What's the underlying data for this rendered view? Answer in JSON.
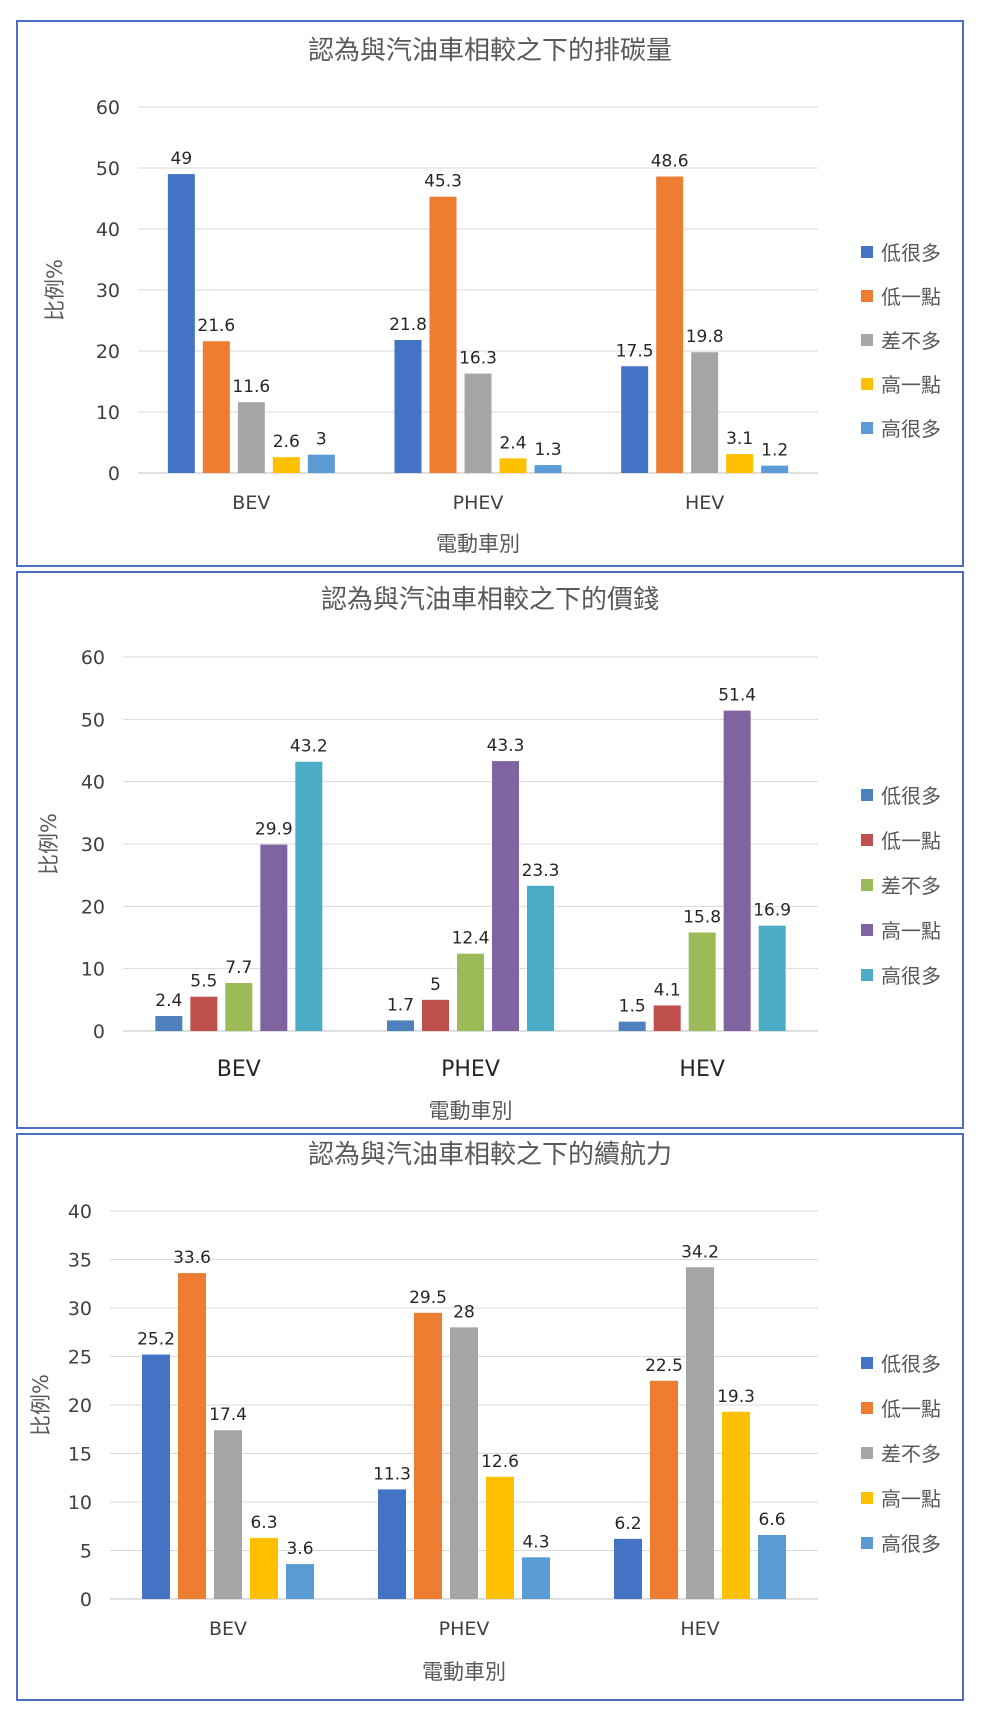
{
  "chart_data": [
    {
      "type": "bar",
      "title": "認為與汽油車相較之下的排碳量",
      "xlabel": "電動車別",
      "ylabel": "比例%",
      "ylim": [
        0,
        60
      ],
      "yticks": [
        0,
        10,
        20,
        30,
        40,
        50,
        60
      ],
      "categories": [
        "BEV",
        "PHEV",
        "HEV"
      ],
      "grid": true,
      "legend_position": "right",
      "series": [
        {
          "name": "低很多",
          "color": "#4472C4",
          "values": [
            49,
            21.8,
            17.5
          ]
        },
        {
          "name": "低一點",
          "color": "#ED7D31",
          "values": [
            21.6,
            45.3,
            48.6
          ]
        },
        {
          "name": "差不多",
          "color": "#A5A5A5",
          "values": [
            11.6,
            16.3,
            19.8
          ]
        },
        {
          "name": "高一點",
          "color": "#FFC000",
          "values": [
            2.6,
            2.4,
            3.1
          ]
        },
        {
          "name": "高很多",
          "color": "#5B9BD5",
          "values": [
            3,
            1.3,
            1.2
          ]
        }
      ]
    },
    {
      "type": "bar",
      "title": "認為與汽油車相較之下的價錢",
      "xlabel": "電動車別",
      "ylabel": "比例%",
      "ylim": [
        0,
        60
      ],
      "yticks": [
        0,
        10,
        20,
        30,
        40,
        50,
        60
      ],
      "categories": [
        "BEV",
        "PHEV",
        "HEV"
      ],
      "grid": true,
      "legend_position": "right",
      "series": [
        {
          "name": "低很多",
          "color": "#4F81BD",
          "values": [
            2.4,
            1.7,
            1.5
          ]
        },
        {
          "name": "低一點",
          "color": "#C0504D",
          "values": [
            5.5,
            5,
            4.1
          ]
        },
        {
          "name": "差不多",
          "color": "#9BBB59",
          "values": [
            7.7,
            12.4,
            15.8
          ]
        },
        {
          "name": "高一點",
          "color": "#8064A2",
          "values": [
            29.9,
            43.3,
            51.4
          ]
        },
        {
          "name": "高很多",
          "color": "#4BACC6",
          "values": [
            43.2,
            23.3,
            16.9
          ]
        }
      ]
    },
    {
      "type": "bar",
      "title": "認為與汽油車相較之下的續航力",
      "xlabel": "電動車別",
      "ylabel": "比例%",
      "ylim": [
        0,
        40
      ],
      "yticks": [
        0,
        5,
        10,
        15,
        20,
        25,
        30,
        35,
        40
      ],
      "categories": [
        "BEV",
        "PHEV",
        "HEV"
      ],
      "grid": true,
      "legend_position": "right",
      "series": [
        {
          "name": "低很多",
          "color": "#4472C4",
          "values": [
            25.2,
            11.3,
            6.2
          ]
        },
        {
          "name": "低一點",
          "color": "#ED7D31",
          "values": [
            33.6,
            29.5,
            22.5
          ]
        },
        {
          "name": "差不多",
          "color": "#A5A5A5",
          "values": [
            17.4,
            28,
            34.2
          ]
        },
        {
          "name": "高一點",
          "color": "#FFC000",
          "values": [
            6.3,
            12.6,
            19.3
          ]
        },
        {
          "name": "高很多",
          "color": "#5B9BD5",
          "values": [
            3.6,
            4.3,
            6.6
          ]
        }
      ]
    }
  ]
}
